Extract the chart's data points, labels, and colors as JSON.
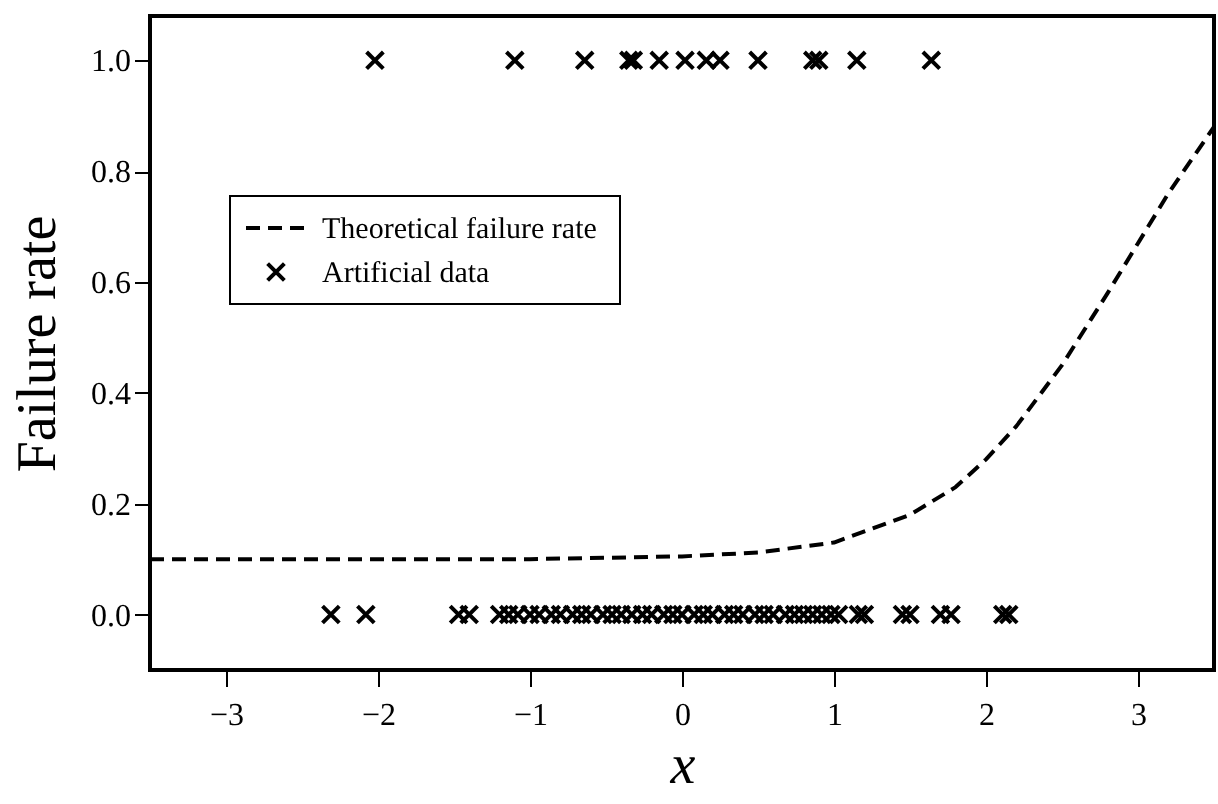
{
  "chart_data": {
    "type": "scatter",
    "xlabel": "x",
    "ylabel": "Failure rate",
    "xlim": [
      -3.5,
      3.5
    ],
    "ylim": [
      -0.1,
      1.08
    ],
    "xticks": [
      {
        "value": -3,
        "label": "−3"
      },
      {
        "value": -2,
        "label": "−2"
      },
      {
        "value": -1,
        "label": "−1"
      },
      0,
      1,
      2,
      3
    ],
    "yticks": [
      {
        "value": 0,
        "label": "0.0"
      },
      {
        "value": 0.2,
        "label": "0.2"
      },
      {
        "value": 0.4,
        "label": "0.4"
      },
      {
        "value": 0.6,
        "label": "0.6"
      },
      {
        "value": 0.8,
        "label": "0.8"
      },
      {
        "value": 1,
        "label": "1.0"
      }
    ],
    "grid": false,
    "legend": "top left",
    "series": [
      {
        "name": "Theoretical failure rate",
        "type": "line",
        "line_style": "dashed",
        "marker": "none",
        "color": "#000000",
        "x": [
          -3.5,
          -2,
          -1,
          0,
          0.5,
          1,
          1.5,
          1.8,
          2,
          2.2,
          2.5,
          2.8,
          3,
          3.2,
          3.4,
          3.5
        ],
        "values": [
          0.1,
          0.1,
          0.1,
          0.105,
          0.112,
          0.13,
          0.18,
          0.23,
          0.28,
          0.34,
          0.45,
          0.58,
          0.67,
          0.76,
          0.84,
          0.88
        ]
      },
      {
        "name": "Artificial data",
        "marker": "cross",
        "color": "#000000",
        "x": [
          -2.02,
          -1.1,
          -0.64,
          -0.35,
          -0.32,
          -0.15,
          0.02,
          0.16,
          0.25,
          0.5,
          0.86,
          0.9,
          1.15,
          1.64,
          -2.31,
          -2.08,
          -1.47,
          -1.4,
          -1.2,
          -1.14,
          -1.08,
          -1.0,
          -0.94,
          -0.86,
          -0.8,
          -0.72,
          -0.66,
          -0.6,
          -0.52,
          -0.46,
          -0.4,
          -0.33,
          -0.26,
          -0.2,
          -0.12,
          -0.06,
          0.0,
          0.08,
          0.14,
          0.2,
          0.28,
          0.34,
          0.4,
          0.48,
          0.54,
          0.6,
          0.68,
          0.74,
          0.8,
          0.86,
          0.92,
          0.98,
          1.03,
          1.16,
          1.2,
          1.45,
          1.5,
          1.7,
          1.77,
          2.11,
          2.15
        ],
        "values": [
          1,
          1,
          1,
          1,
          1,
          1,
          1,
          1,
          1,
          1,
          1,
          1,
          1,
          1,
          0,
          0,
          0,
          0,
          0,
          0,
          0,
          0,
          0,
          0,
          0,
          0,
          0,
          0,
          0,
          0,
          0,
          0,
          0,
          0,
          0,
          0,
          0,
          0,
          0,
          0,
          0,
          0,
          0,
          0,
          0,
          0,
          0,
          0,
          0,
          0,
          0,
          0,
          0,
          0,
          0,
          0,
          0,
          0,
          0,
          0,
          0
        ]
      }
    ]
  }
}
